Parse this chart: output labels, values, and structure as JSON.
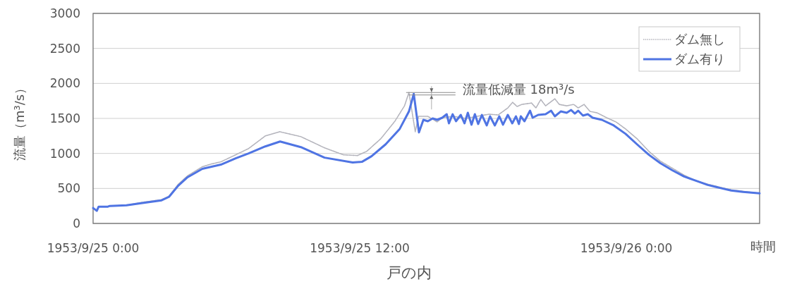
{
  "chart_data": {
    "type": "line",
    "title": "戸の内",
    "xlabel": "時間",
    "ylabel": "流量（m³/s）",
    "xlim": [
      "1953-09-25T00:00",
      "1953-09-26T06:00"
    ],
    "xticks": [
      {
        "value": "1953-09-25T00:00",
        "label": "1953/9/25 0:00"
      },
      {
        "value": "1953-09-25T12:00",
        "label": "1953/9/25 12:00"
      },
      {
        "value": "1953-09-26T00:00",
        "label": "1953/9/26 0:00"
      }
    ],
    "ylim": [
      0,
      3000
    ],
    "yticks": [
      0,
      500,
      1000,
      1500,
      2000,
      2500,
      3000
    ],
    "grid": "y",
    "legend": "top right",
    "series": [
      {
        "name": "ダム無し",
        "color": "#b4b4bc",
        "line_style": "dotted",
        "x": [
          "1953-09-25T00:00",
          "1953-09-25T00:10",
          "1953-09-25T00:15",
          "1953-09-25T00:40",
          "1953-09-25T00:45",
          "1953-09-25T01:30",
          "1953-09-25T02:10",
          "1953-09-25T03:05",
          "1953-09-25T03:25",
          "1953-09-25T03:50",
          "1953-09-25T04:15",
          "1953-09-25T04:55",
          "1953-09-25T05:20",
          "1953-09-25T05:45",
          "1953-09-25T06:25",
          "1953-09-25T07:00",
          "1953-09-25T07:45",
          "1953-09-25T08:24",
          "1953-09-25T09:21",
          "1953-09-25T10:25",
          "1953-09-25T11:16",
          "1953-09-25T11:54",
          "1953-09-25T12:19",
          "1953-09-25T12:57",
          "1953-09-25T13:35",
          "1953-09-25T14:01",
          "1953-09-25T14:13",
          "1953-09-25T14:30",
          "1953-09-25T14:39",
          "1953-09-25T15:04",
          "1953-09-25T15:29",
          "1953-09-25T15:43",
          "1953-09-25T16:14",
          "1953-09-25T16:46",
          "1953-09-25T17:17",
          "1953-09-25T17:49",
          "1953-09-25T18:14",
          "1953-09-25T18:40",
          "1953-09-25T18:53",
          "1953-09-25T19:05",
          "1953-09-25T19:18",
          "1953-09-25T19:44",
          "1953-09-25T19:56",
          "1953-09-25T20:09",
          "1953-09-25T20:22",
          "1953-09-25T20:47",
          "1953-09-25T20:59",
          "1953-09-25T21:19",
          "1953-09-25T21:38",
          "1953-09-25T21:50",
          "1953-09-25T22:06",
          "1953-09-25T22:22",
          "1953-09-25T22:41",
          "1953-09-25T23:07",
          "1953-09-25T23:32",
          "1953-09-25T23:58",
          "1953-09-26T00:29",
          "1953-09-26T01:01",
          "1953-09-26T01:32",
          "1953-09-26T02:04",
          "1953-09-26T02:36",
          "1953-09-26T03:08",
          "1953-09-26T03:40",
          "1953-09-26T04:11",
          "1953-09-26T04:43",
          "1953-09-26T05:15",
          "1953-09-26T06:00"
        ],
        "values": [
          220,
          180,
          240,
          240,
          250,
          260,
          300,
          340,
          390,
          560,
          680,
          810,
          850,
          880,
          980,
          1070,
          1250,
          1310,
          1240,
          1080,
          980,
          970,
          1030,
          1210,
          1460,
          1680,
          1870,
          1310,
          1530,
          1530,
          1450,
          1510,
          1530,
          1500,
          1530,
          1560,
          1550,
          1650,
          1730,
          1670,
          1700,
          1720,
          1650,
          1770,
          1680,
          1780,
          1700,
          1680,
          1700,
          1650,
          1700,
          1600,
          1580,
          1510,
          1450,
          1350,
          1210,
          1030,
          890,
          790,
          690,
          610,
          560,
          520,
          480,
          460,
          430
        ]
      },
      {
        "name": "ダム有り",
        "color": "#4f74e3",
        "line_style": "solid",
        "x": [
          "1953-09-25T00:00",
          "1953-09-25T00:10",
          "1953-09-25T00:15",
          "1953-09-25T00:40",
          "1953-09-25T00:45",
          "1953-09-25T01:30",
          "1953-09-25T02:10",
          "1953-09-25T03:05",
          "1953-09-25T03:25",
          "1953-09-25T03:50",
          "1953-09-25T04:15",
          "1953-09-25T04:55",
          "1953-09-25T05:20",
          "1953-09-25T05:45",
          "1953-09-25T06:25",
          "1953-09-25T07:00",
          "1953-09-25T07:45",
          "1953-09-25T08:25",
          "1953-09-25T09:21",
          "1953-09-25T10:25",
          "1953-09-25T11:41",
          "1953-09-25T12:06",
          "1953-09-25T12:32",
          "1953-09-25T13:10",
          "1953-09-25T13:48",
          "1953-09-25T14:13",
          "1953-09-25T14:26",
          "1953-09-25T14:40",
          "1953-09-25T14:52",
          "1953-09-25T15:04",
          "1953-09-25T15:17",
          "1953-09-25T15:29",
          "1953-09-25T15:43",
          "1953-09-25T15:55",
          "1953-09-25T16:01",
          "1953-09-25T16:11",
          "1953-09-25T16:20",
          "1953-09-25T16:33",
          "1953-09-25T16:43",
          "1953-09-25T16:52",
          "1953-09-25T17:02",
          "1953-09-25T17:11",
          "1953-09-25T17:20",
          "1953-09-25T17:30",
          "1953-09-25T17:43",
          "1953-09-25T17:52",
          "1953-09-25T18:05",
          "1953-09-25T18:17",
          "1953-09-25T18:27",
          "1953-09-25T18:40",
          "1953-09-25T18:52",
          "1953-09-25T19:02",
          "1953-09-25T19:10",
          "1953-09-25T19:15",
          "1953-09-25T19:25",
          "1953-09-25T19:40",
          "1953-09-25T19:47",
          "1953-09-25T20:02",
          "1953-09-25T20:22",
          "1953-09-25T20:37",
          "1953-09-25T20:47",
          "1953-09-25T21:03",
          "1953-09-25T21:19",
          "1953-09-25T21:31",
          "1953-09-25T21:41",
          "1953-09-25T21:50",
          "1953-09-25T22:03",
          "1953-09-25T22:16",
          "1953-09-25T22:29",
          "1953-09-25T22:54",
          "1953-09-25T23:26",
          "1953-09-25T23:58",
          "1953-09-26T00:29",
          "1953-09-26T01:01",
          "1953-09-26T01:32",
          "1953-09-26T02:04",
          "1953-09-26T02:36",
          "1953-09-26T03:08",
          "1953-09-26T03:40",
          "1953-09-26T04:11",
          "1953-09-26T04:43",
          "1953-09-26T05:15",
          "1953-09-26T06:00"
        ],
        "values": [
          220,
          180,
          240,
          240,
          250,
          260,
          290,
          330,
          380,
          540,
          660,
          780,
          810,
          840,
          930,
          1000,
          1100,
          1170,
          1090,
          940,
          870,
          880,
          960,
          1130,
          1350,
          1600,
          1850,
          1300,
          1480,
          1460,
          1500,
          1480,
          1510,
          1560,
          1430,
          1560,
          1460,
          1550,
          1430,
          1580,
          1410,
          1560,
          1420,
          1550,
          1400,
          1530,
          1400,
          1530,
          1410,
          1550,
          1430,
          1530,
          1420,
          1530,
          1460,
          1610,
          1510,
          1550,
          1560,
          1610,
          1530,
          1600,
          1580,
          1620,
          1570,
          1610,
          1540,
          1560,
          1510,
          1480,
          1400,
          1280,
          1130,
          980,
          860,
          760,
          670,
          610,
          550,
          510,
          470,
          450,
          430
        ]
      }
    ],
    "annotations": [
      {
        "text": "流量低減量 18m³/s",
        "x": "1953-09-25T14:13",
        "y": 1870
      }
    ]
  }
}
